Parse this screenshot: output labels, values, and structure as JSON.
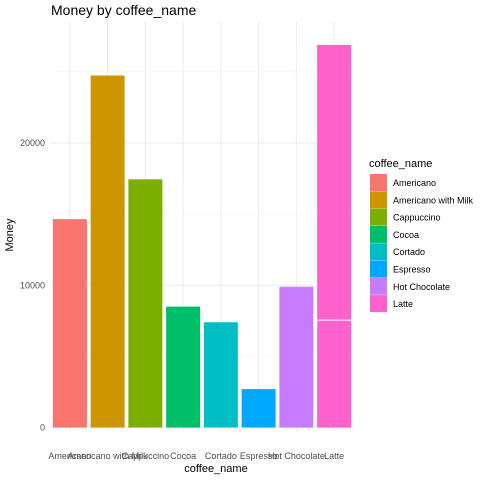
{
  "chart_data": {
    "type": "bar",
    "title": "Money by coffee_name",
    "xlabel": "coffee_name",
    "ylabel": "Money",
    "ylim": [
      0,
      27000
    ],
    "yticks": [
      0,
      10000,
      20000
    ],
    "ytick_labels": [
      "0",
      "10000",
      "20000"
    ],
    "grid": true,
    "legend_title": "coffee_name",
    "legend_position": "right",
    "categories": [
      "Americano",
      "Americano with Milk",
      "Cappuccino",
      "Cocoa",
      "Cortado",
      "Espresso",
      "Hot Chocolate",
      "Latte"
    ],
    "values": [
      14650,
      24750,
      17450,
      8500,
      7400,
      2700,
      9900,
      26900
    ],
    "segment_divider": {
      "category": "Latte",
      "value": 7550
    },
    "colors": [
      "#F8766D",
      "#CD9600",
      "#7CAE00",
      "#00BE67",
      "#00BFC4",
      "#00A9FF",
      "#C77CFF",
      "#FF61CC"
    ]
  }
}
